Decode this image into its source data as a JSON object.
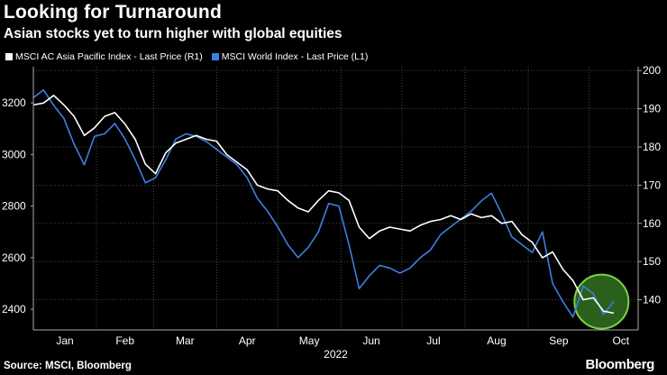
{
  "header": {
    "title": "Looking for Turnaround",
    "subtitle": "Asian stocks yet to turn higher with global equities"
  },
  "footer": {
    "source": "Source: MSCI, Bloomberg",
    "logo": "Bloomberg"
  },
  "colors": {
    "background": "#000000",
    "grid": "#5a5a5a",
    "asia_series": "#ffffff",
    "world_series": "#3d7fe0",
    "highlight_fill": "#2e6b1f",
    "highlight_stroke": "#7fd34a"
  },
  "chart_data": {
    "type": "line",
    "grid": true,
    "legend_position": "top-left",
    "year_label": "2022",
    "x_ticks": [
      "Jan",
      "Feb",
      "Mar",
      "Apr",
      "May",
      "Jun",
      "Jul",
      "Aug",
      "Sep",
      "Oct"
    ],
    "left_axis": {
      "ticks": [
        "3200",
        "3000",
        "2800",
        "2600",
        "2400"
      ],
      "ylim": [
        2320,
        3340
      ]
    },
    "right_axis": {
      "ticks": [
        "200",
        "190",
        "180",
        "170",
        "160",
        "150",
        "140"
      ],
      "ylim": [
        132.1,
        201
      ]
    },
    "annotation": "circle highlighting early October",
    "series": [
      {
        "name": "MSCI AC Asia Pacific Index - Last Price (R1)",
        "axis": "right",
        "color": "#ffffff",
        "x": [
          "2022-01-01",
          "2022-01-06",
          "2022-01-11",
          "2022-01-16",
          "2022-01-21",
          "2022-01-26",
          "2022-01-31",
          "2022-02-05",
          "2022-02-10",
          "2022-02-15",
          "2022-02-20",
          "2022-02-25",
          "2022-03-02",
          "2022-03-07",
          "2022-03-12",
          "2022-03-17",
          "2022-03-22",
          "2022-03-27",
          "2022-04-01",
          "2022-04-06",
          "2022-04-11",
          "2022-04-16",
          "2022-04-21",
          "2022-04-26",
          "2022-05-01",
          "2022-05-06",
          "2022-05-11",
          "2022-05-16",
          "2022-05-21",
          "2022-05-26",
          "2022-05-31",
          "2022-06-05",
          "2022-06-10",
          "2022-06-15",
          "2022-06-20",
          "2022-06-25",
          "2022-06-30",
          "2022-07-05",
          "2022-07-10",
          "2022-07-15",
          "2022-07-20",
          "2022-07-25",
          "2022-07-30",
          "2022-08-04",
          "2022-08-09",
          "2022-08-14",
          "2022-08-19",
          "2022-08-24",
          "2022-08-29",
          "2022-09-03",
          "2022-09-08",
          "2022-09-13",
          "2022-09-18",
          "2022-09-23",
          "2022-09-28",
          "2022-10-03",
          "2022-10-08",
          "2022-10-13"
        ],
        "values": [
          191,
          191.5,
          193.5,
          191,
          188,
          183,
          185,
          188,
          189,
          186,
          182,
          175.5,
          173,
          178.5,
          181,
          182,
          183,
          182,
          181.5,
          178,
          176,
          174,
          170,
          169,
          168.5,
          166,
          164,
          163,
          166,
          168.5,
          168,
          166,
          159,
          156,
          158,
          159,
          158.5,
          158,
          159.5,
          160.5,
          161,
          162,
          161,
          162.5,
          161.5,
          162,
          160,
          160.5,
          157,
          155,
          151,
          152.5,
          148,
          145,
          140,
          140.5,
          137,
          136.5
        ]
      },
      {
        "name": "MSCI World Index - Last Price (L1)",
        "axis": "left",
        "color": "#3d7fe0",
        "x": [
          "2022-01-01",
          "2022-01-06",
          "2022-01-11",
          "2022-01-16",
          "2022-01-21",
          "2022-01-26",
          "2022-01-31",
          "2022-02-05",
          "2022-02-10",
          "2022-02-15",
          "2022-02-20",
          "2022-02-25",
          "2022-03-02",
          "2022-03-07",
          "2022-03-12",
          "2022-03-17",
          "2022-03-22",
          "2022-03-27",
          "2022-04-01",
          "2022-04-06",
          "2022-04-11",
          "2022-04-16",
          "2022-04-21",
          "2022-04-26",
          "2022-05-01",
          "2022-05-06",
          "2022-05-11",
          "2022-05-16",
          "2022-05-21",
          "2022-05-26",
          "2022-05-31",
          "2022-06-05",
          "2022-06-10",
          "2022-06-15",
          "2022-06-20",
          "2022-06-25",
          "2022-06-30",
          "2022-07-05",
          "2022-07-10",
          "2022-07-15",
          "2022-07-20",
          "2022-07-25",
          "2022-07-30",
          "2022-08-04",
          "2022-08-09",
          "2022-08-14",
          "2022-08-19",
          "2022-08-24",
          "2022-08-29",
          "2022-09-03",
          "2022-09-08",
          "2022-09-13",
          "2022-09-18",
          "2022-09-23",
          "2022-09-28",
          "2022-10-03",
          "2022-10-08",
          "2022-10-13"
        ],
        "values": [
          3220,
          3250,
          3190,
          3140,
          3040,
          2960,
          3070,
          3080,
          3120,
          3060,
          2980,
          2890,
          2910,
          2980,
          3060,
          3080,
          3070,
          3050,
          3020,
          2990,
          2960,
          2910,
          2830,
          2780,
          2720,
          2650,
          2600,
          2640,
          2700,
          2810,
          2800,
          2650,
          2480,
          2530,
          2570,
          2560,
          2540,
          2560,
          2600,
          2630,
          2690,
          2720,
          2750,
          2780,
          2820,
          2850,
          2770,
          2680,
          2650,
          2620,
          2700,
          2500,
          2430,
          2370,
          2490,
          2460,
          2380,
          2430
        ]
      }
    ]
  }
}
